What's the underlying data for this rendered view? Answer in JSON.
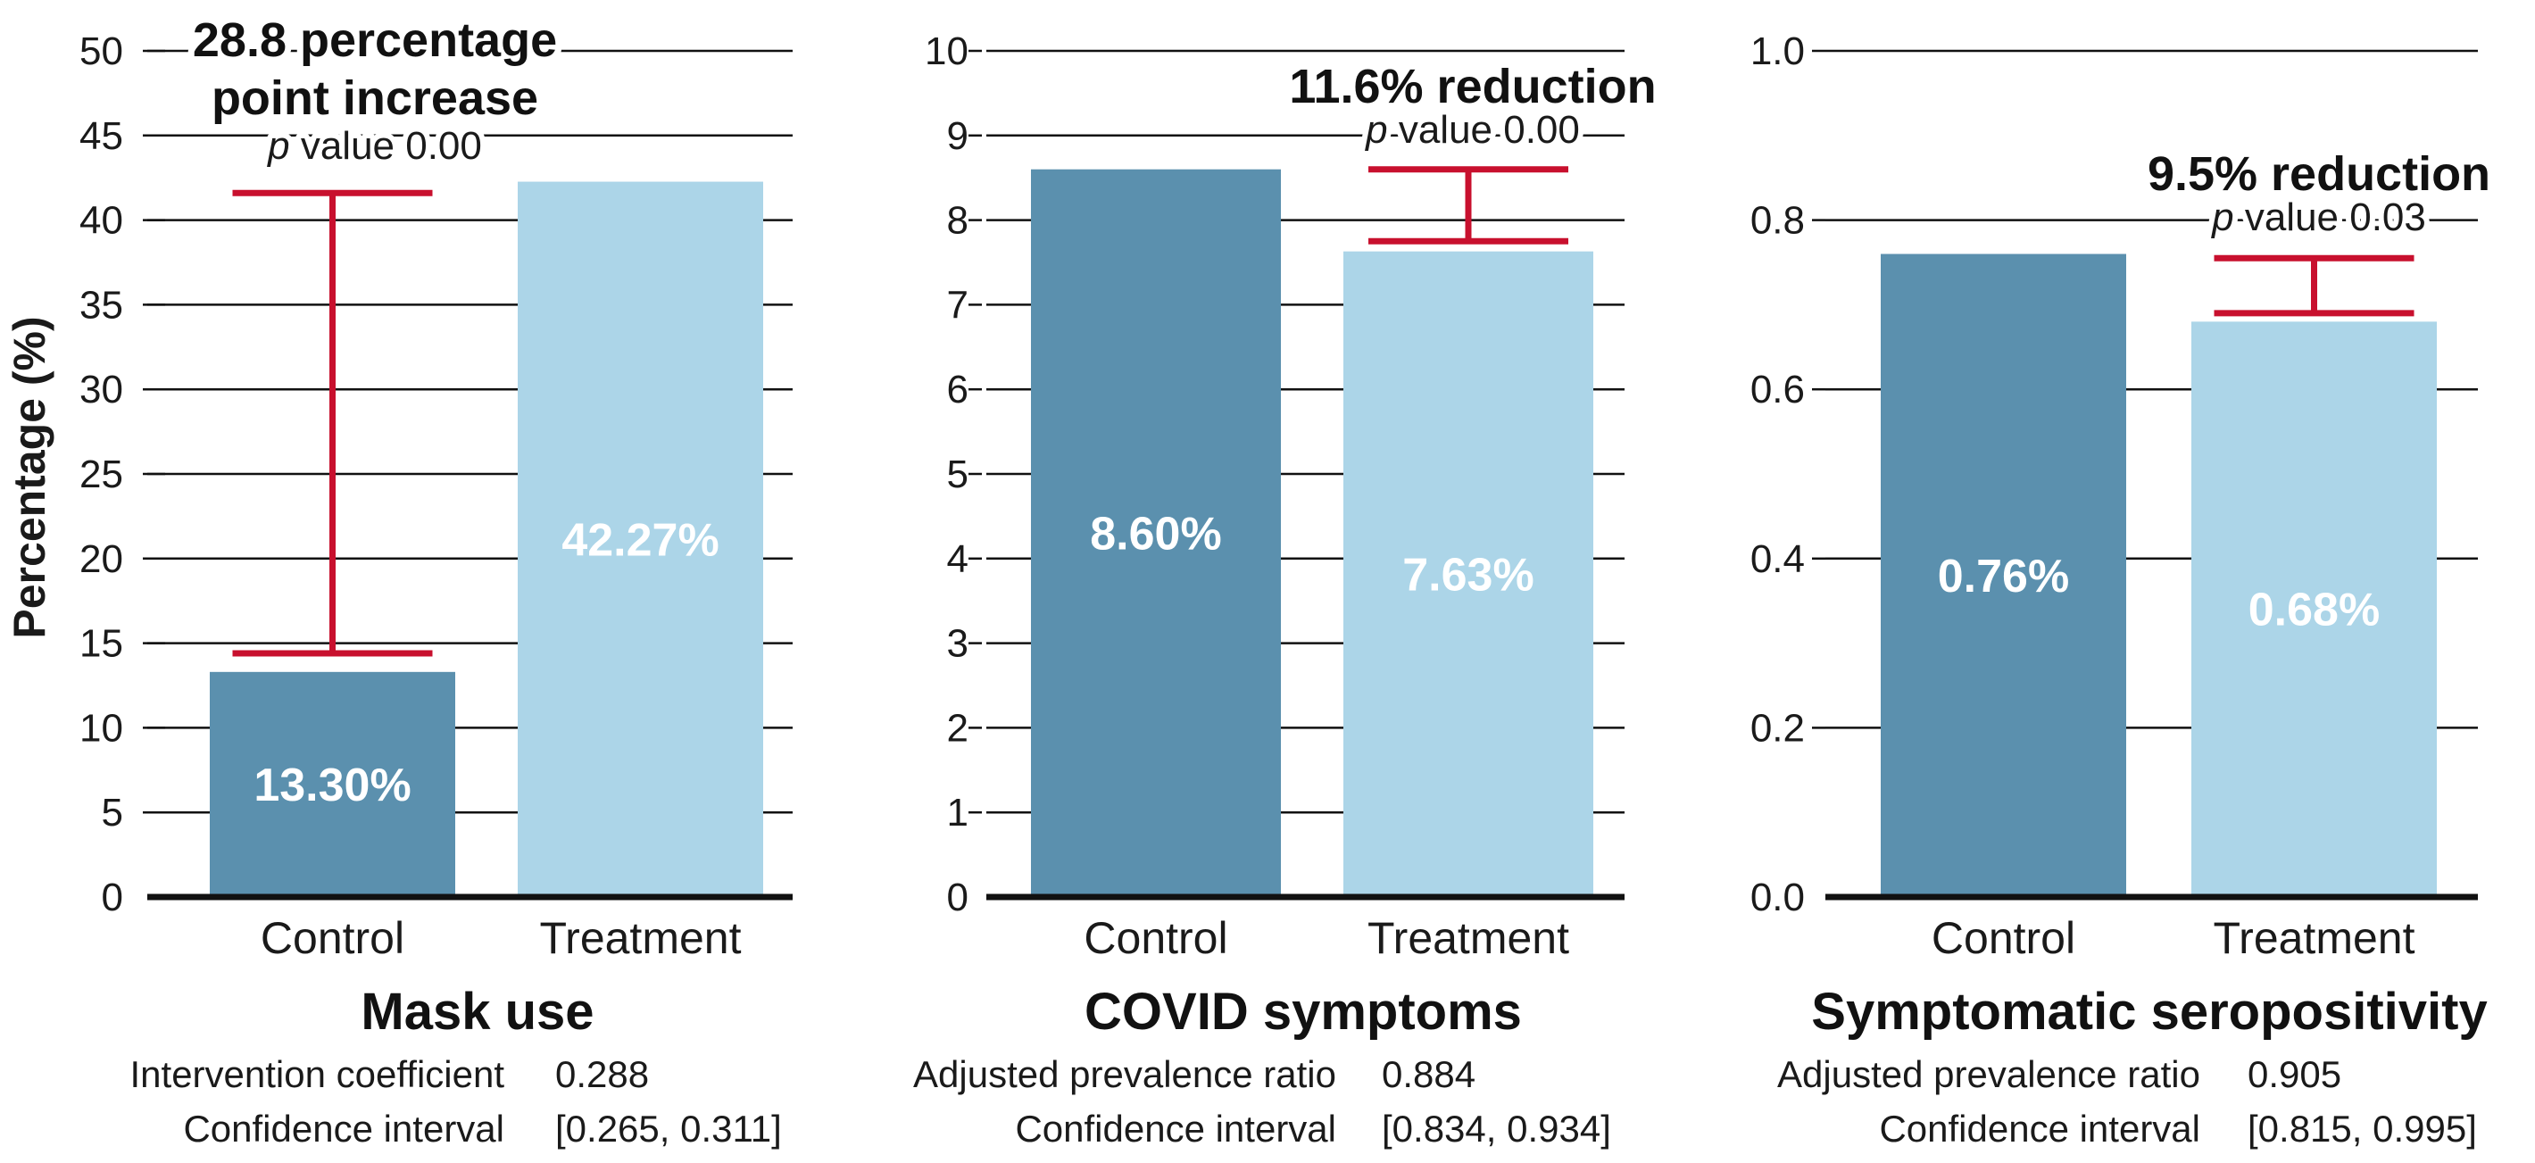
{
  "colors": {
    "control_bar": "#5b90ae",
    "treatment_bar": "#acd5e8",
    "error_bar": "#c8102e",
    "gridline": "#111111",
    "axis_baseline": "#111111",
    "bar_label": "#ffffff"
  },
  "y_axis_label": "Percentage (%)",
  "chart_data": [
    {
      "type": "bar",
      "title": "Mask use",
      "categories": [
        "Control",
        "Treatment"
      ],
      "values": [
        13.3,
        42.27
      ],
      "value_labels": [
        "13.30%",
        "42.27%"
      ],
      "ylim": [
        0,
        50
      ],
      "yticks": [
        0,
        5,
        10,
        15,
        20,
        25,
        30,
        35,
        40,
        45,
        50
      ],
      "ytick_labels": [
        "0",
        "5",
        "10",
        "15",
        "20",
        "25",
        "30",
        "35",
        "40",
        "45",
        "50"
      ],
      "grid": true,
      "ylabel": "Percentage (%)",
      "interval": {
        "category": "Control",
        "low": 14.4,
        "high": 41.6
      },
      "annotation": {
        "title_lines": [
          "28.8 percentage",
          "point increase"
        ],
        "p_symbol": "p",
        "p_text": " value 0.00"
      },
      "stats": [
        {
          "label": "Intervention coefficient",
          "value": "0.288"
        },
        {
          "label": "Confidence interval",
          "value": "[0.265, 0.311]"
        }
      ]
    },
    {
      "type": "bar",
      "title": "COVID symptoms",
      "categories": [
        "Control",
        "Treatment"
      ],
      "values": [
        8.6,
        7.63
      ],
      "value_labels": [
        "8.60%",
        "7.63%"
      ],
      "ylim": [
        0,
        10
      ],
      "yticks": [
        0,
        1,
        2,
        3,
        4,
        5,
        6,
        7,
        8,
        9,
        10
      ],
      "ytick_labels": [
        "0",
        "1",
        "2",
        "3",
        "4",
        "5",
        "6",
        "7",
        "8",
        "9",
        "10"
      ],
      "grid": true,
      "interval": {
        "category": "Treatment",
        "low": 7.75,
        "high": 8.6
      },
      "annotation": {
        "title_lines": [
          "11.6% reduction"
        ],
        "p_symbol": "p",
        "p_text": " value 0.00"
      },
      "stats": [
        {
          "label": "Adjusted prevalence ratio",
          "value": "0.884"
        },
        {
          "label": "Confidence interval",
          "value": "[0.834, 0.934]"
        }
      ]
    },
    {
      "type": "bar",
      "title": "Symptomatic seropositivity",
      "categories": [
        "Control",
        "Treatment"
      ],
      "values": [
        0.76,
        0.68
      ],
      "value_labels": [
        "0.76%",
        "0.68%"
      ],
      "ylim": [
        0,
        1.0
      ],
      "yticks": [
        0.0,
        0.2,
        0.4,
        0.6,
        0.8,
        1.0
      ],
      "ytick_labels": [
        "0.0",
        "0.2",
        "0.4",
        "0.6",
        "0.8",
        "1.0"
      ],
      "grid": true,
      "interval": {
        "category": "Treatment",
        "low": 0.69,
        "high": 0.755
      },
      "annotation": {
        "title_lines": [
          "9.5% reduction"
        ],
        "p_symbol": "p",
        "p_text": " value 0.03"
      },
      "stats": [
        {
          "label": "Adjusted prevalence ratio",
          "value": "0.905"
        },
        {
          "label": "Confidence interval",
          "value": "[0.815, 0.995]"
        }
      ]
    }
  ]
}
